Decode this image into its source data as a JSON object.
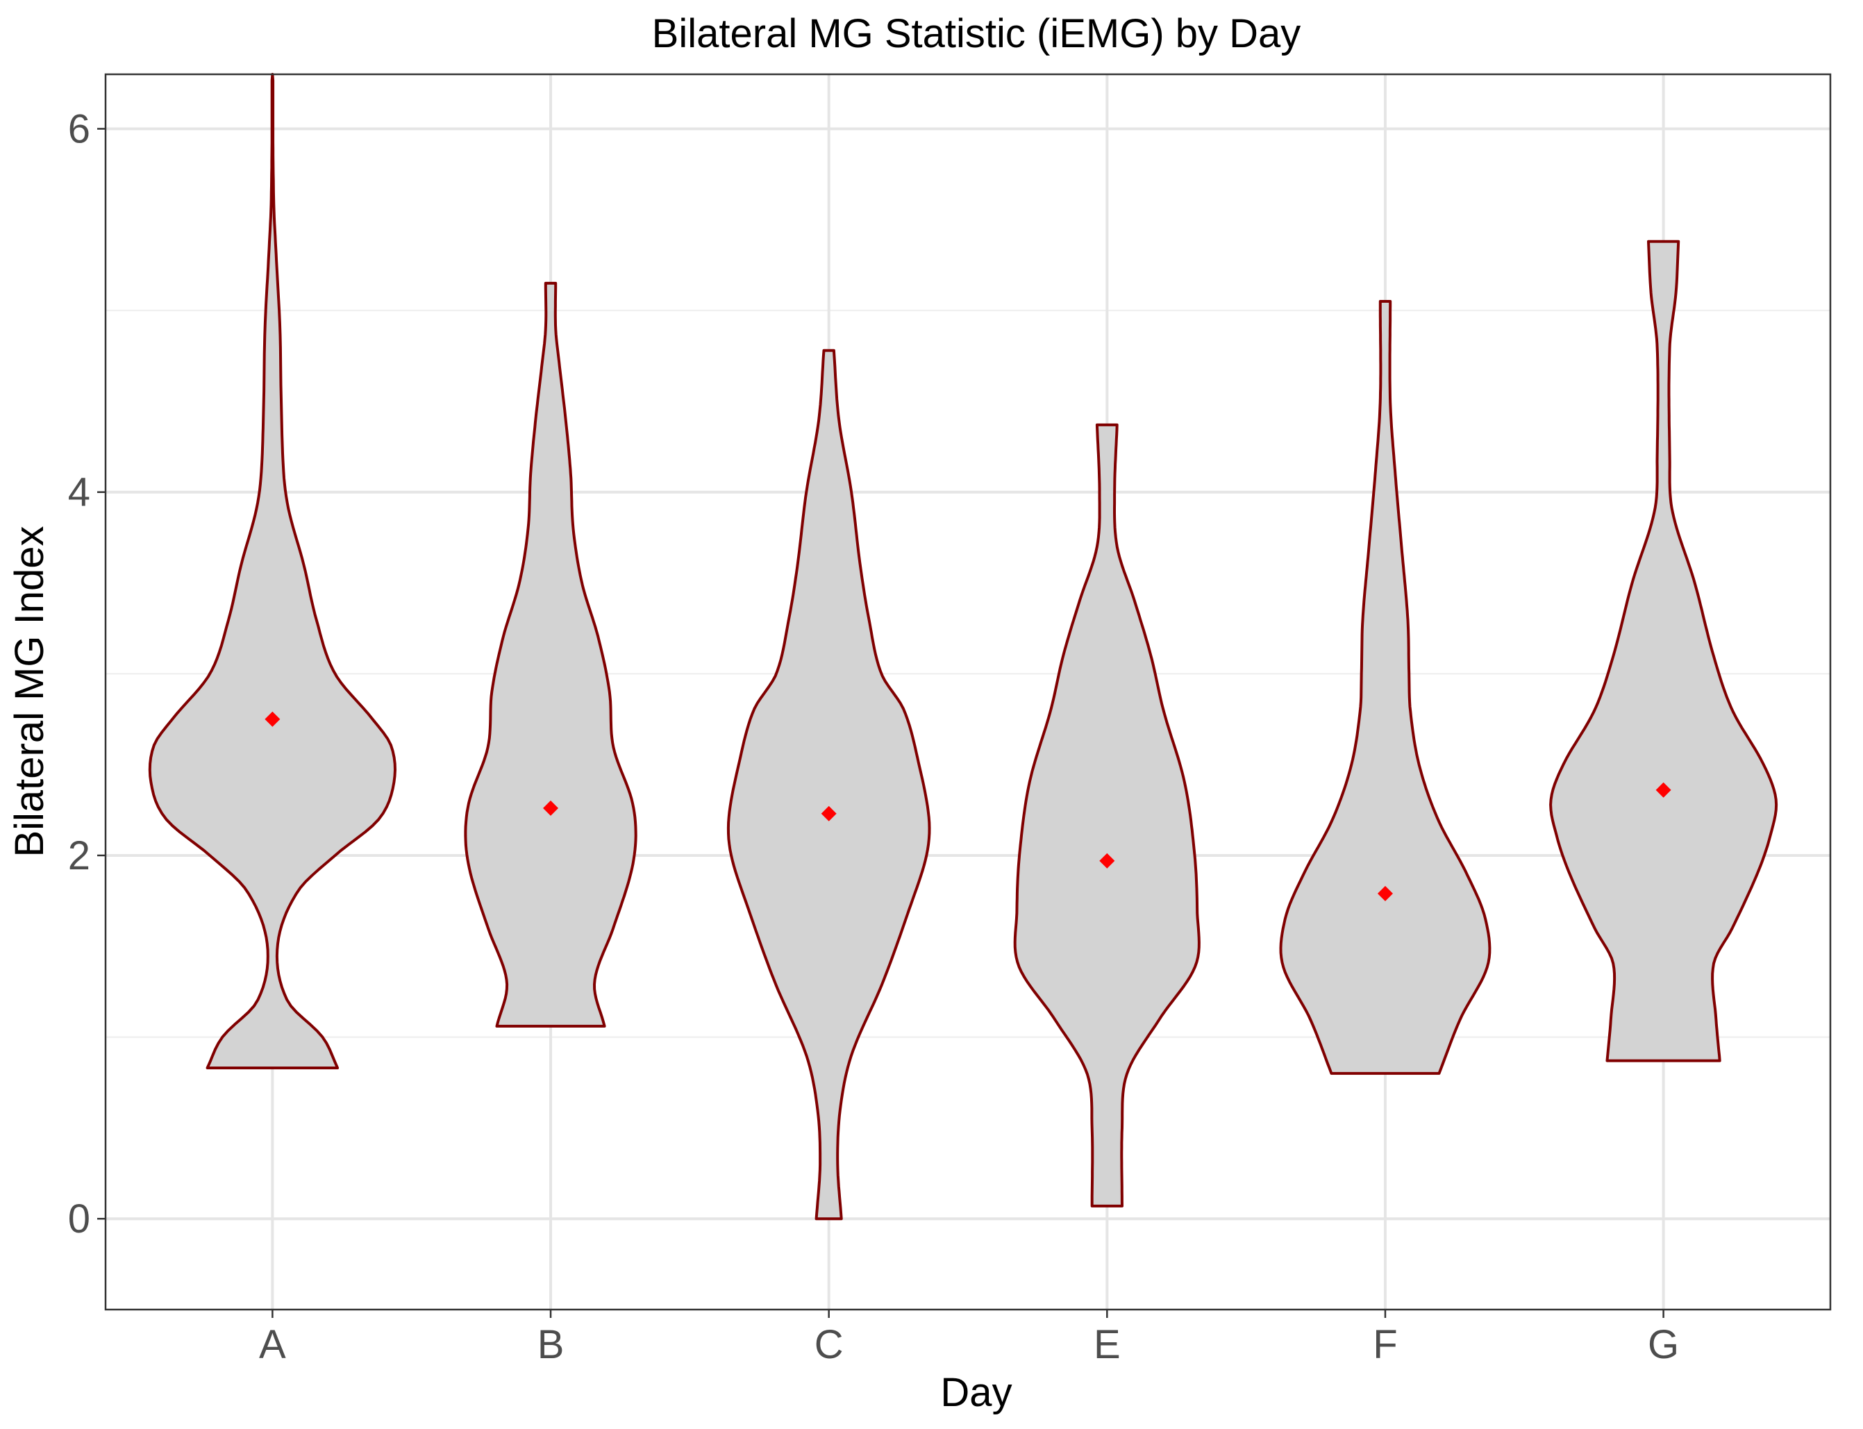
{
  "chart_data": {
    "type": "violin",
    "title": "Bilateral MG Statistic (iEMG) by Day",
    "xlabel": "Day",
    "ylabel": "Bilateral MG Index",
    "categories": [
      "A",
      "B",
      "C",
      "E",
      "F",
      "G"
    ],
    "ylim": [
      -0.5,
      6.3
    ],
    "yticks": [
      0,
      2,
      4,
      6
    ],
    "grid": true,
    "colors": {
      "violin_fill": "#d3d3d3",
      "violin_outline": "#800000",
      "mean_point": "#ff0000"
    },
    "violins": [
      {
        "category": "A",
        "min": 0.83,
        "max": 6.3,
        "mean": 2.75,
        "density": [
          [
            0.83,
            0.52
          ],
          [
            1.0,
            0.4
          ],
          [
            1.2,
            0.12
          ],
          [
            1.5,
            0.04
          ],
          [
            1.8,
            0.2
          ],
          [
            2.0,
            0.5
          ],
          [
            2.2,
            0.85
          ],
          [
            2.4,
            0.97
          ],
          [
            2.6,
            0.95
          ],
          [
            2.75,
            0.8
          ],
          [
            3.0,
            0.5
          ],
          [
            3.3,
            0.35
          ],
          [
            3.6,
            0.25
          ],
          [
            3.9,
            0.13
          ],
          [
            4.1,
            0.09
          ],
          [
            4.5,
            0.07
          ],
          [
            4.9,
            0.06
          ],
          [
            5.3,
            0.03
          ],
          [
            5.6,
            0.01
          ],
          [
            6.3,
            0.0
          ]
        ]
      },
      {
        "category": "B",
        "min": 1.06,
        "max": 5.15,
        "mean": 2.26,
        "density": [
          [
            1.06,
            0.43
          ],
          [
            1.3,
            0.35
          ],
          [
            1.6,
            0.5
          ],
          [
            1.9,
            0.64
          ],
          [
            2.1,
            0.68
          ],
          [
            2.3,
            0.65
          ],
          [
            2.6,
            0.5
          ],
          [
            2.9,
            0.47
          ],
          [
            3.2,
            0.38
          ],
          [
            3.5,
            0.25
          ],
          [
            3.8,
            0.18
          ],
          [
            4.1,
            0.16
          ],
          [
            4.4,
            0.12
          ],
          [
            4.7,
            0.07
          ],
          [
            4.9,
            0.04
          ],
          [
            5.15,
            0.04
          ]
        ]
      },
      {
        "category": "C",
        "min": 0.0,
        "max": 4.78,
        "mean": 2.23,
        "density": [
          [
            0.0,
            0.1
          ],
          [
            0.3,
            0.07
          ],
          [
            0.6,
            0.09
          ],
          [
            0.9,
            0.18
          ],
          [
            1.3,
            0.43
          ],
          [
            1.7,
            0.64
          ],
          [
            2.0,
            0.78
          ],
          [
            2.2,
            0.8
          ],
          [
            2.5,
            0.72
          ],
          [
            2.8,
            0.6
          ],
          [
            3.0,
            0.42
          ],
          [
            3.3,
            0.32
          ],
          [
            3.6,
            0.25
          ],
          [
            4.0,
            0.18
          ],
          [
            4.4,
            0.08
          ],
          [
            4.78,
            0.04
          ]
        ]
      },
      {
        "category": "E",
        "min": 0.07,
        "max": 4.37,
        "mean": 1.97,
        "density": [
          [
            0.07,
            0.12
          ],
          [
            0.5,
            0.12
          ],
          [
            0.8,
            0.16
          ],
          [
            1.1,
            0.42
          ],
          [
            1.4,
            0.71
          ],
          [
            1.7,
            0.72
          ],
          [
            2.0,
            0.7
          ],
          [
            2.4,
            0.62
          ],
          [
            2.8,
            0.45
          ],
          [
            3.1,
            0.35
          ],
          [
            3.4,
            0.22
          ],
          [
            3.7,
            0.08
          ],
          [
            4.0,
            0.06
          ],
          [
            4.37,
            0.08
          ]
        ]
      },
      {
        "category": "F",
        "min": 0.8,
        "max": 5.05,
        "mean": 1.79,
        "density": [
          [
            0.8,
            0.43
          ],
          [
            1.1,
            0.6
          ],
          [
            1.4,
            0.82
          ],
          [
            1.65,
            0.8
          ],
          [
            1.9,
            0.65
          ],
          [
            2.2,
            0.42
          ],
          [
            2.5,
            0.27
          ],
          [
            2.8,
            0.2
          ],
          [
            3.0,
            0.19
          ],
          [
            3.3,
            0.18
          ],
          [
            3.7,
            0.13
          ],
          [
            4.1,
            0.08
          ],
          [
            4.5,
            0.04
          ],
          [
            5.05,
            0.04
          ]
        ]
      },
      {
        "category": "G",
        "min": 0.87,
        "max": 5.38,
        "mean": 2.36,
        "density": [
          [
            0.87,
            0.45
          ],
          [
            1.1,
            0.42
          ],
          [
            1.4,
            0.4
          ],
          [
            1.6,
            0.55
          ],
          [
            1.9,
            0.75
          ],
          [
            2.1,
            0.85
          ],
          [
            2.3,
            0.9
          ],
          [
            2.5,
            0.8
          ],
          [
            2.8,
            0.55
          ],
          [
            3.1,
            0.4
          ],
          [
            3.5,
            0.25
          ],
          [
            3.9,
            0.07
          ],
          [
            4.2,
            0.05
          ],
          [
            4.8,
            0.05
          ],
          [
            5.1,
            0.1
          ],
          [
            5.38,
            0.12
          ]
        ]
      }
    ]
  }
}
